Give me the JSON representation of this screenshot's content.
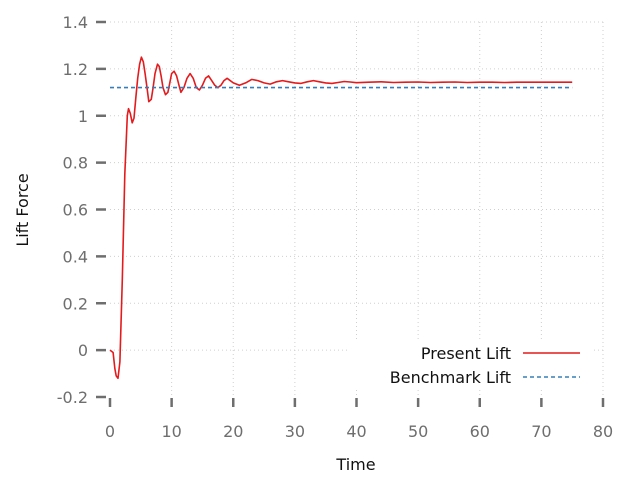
{
  "chart_data": {
    "type": "line",
    "title": "",
    "xlabel": "Time",
    "ylabel": "Lift Force",
    "xlim": [
      0,
      80
    ],
    "ylim": [
      -0.2,
      1.4
    ],
    "xticks": [
      0,
      10,
      20,
      30,
      40,
      50,
      60,
      70,
      80
    ],
    "xtick_labels": [
      "0",
      "10",
      "20",
      "30",
      "40",
      "50",
      "60",
      "70",
      "80"
    ],
    "yticks": [
      -0.2,
      0,
      0.2,
      0.4,
      0.6,
      0.8,
      1,
      1.2,
      1.4
    ],
    "ytick_labels": [
      "-0.2",
      "0",
      "0.2",
      "0.4",
      "0.6",
      "0.8",
      "1",
      "1.2",
      "1.4"
    ],
    "grid": true,
    "legend": "bottom-right",
    "series": [
      {
        "name": "Present Lift",
        "color": "#e41a1c",
        "style": "solid",
        "x": [
          0,
          0.5,
          0.8,
          1.0,
          1.3,
          1.6,
          2.0,
          2.4,
          2.8,
          3.0,
          3.3,
          3.6,
          3.9,
          4.2,
          4.5,
          4.8,
          5.1,
          5.4,
          5.7,
          6.0,
          6.3,
          6.7,
          7.0,
          7.3,
          7.7,
          8.0,
          8.3,
          8.6,
          9.0,
          9.4,
          9.7,
          10.0,
          10.4,
          10.8,
          11.2,
          11.5,
          12.0,
          12.5,
          13.0,
          13.5,
          14.0,
          14.5,
          15.0,
          15.5,
          16.0,
          16.5,
          17.0,
          17.5,
          18.0,
          18.5,
          19.0,
          20.0,
          21.0,
          22.0,
          23.0,
          24.0,
          25.0,
          26.0,
          27.0,
          28.0,
          29.0,
          30.0,
          31.0,
          32.0,
          33.0,
          34.0,
          35.0,
          36.0,
          37.0,
          38.0,
          39.0,
          40.0,
          42.0,
          44.0,
          46.0,
          48.0,
          50.0,
          52.0,
          54.0,
          56.0,
          58.0,
          60.0,
          62.0,
          64.0,
          66.0,
          68.0,
          70.0,
          72.0,
          75.0
        ],
        "values": [
          0,
          -0.01,
          -0.08,
          -0.11,
          -0.12,
          -0.05,
          0.3,
          0.75,
          1.0,
          1.03,
          1.01,
          0.97,
          0.99,
          1.08,
          1.16,
          1.22,
          1.25,
          1.23,
          1.18,
          1.12,
          1.06,
          1.07,
          1.12,
          1.18,
          1.22,
          1.21,
          1.17,
          1.12,
          1.09,
          1.1,
          1.14,
          1.18,
          1.19,
          1.17,
          1.13,
          1.1,
          1.12,
          1.16,
          1.18,
          1.16,
          1.12,
          1.11,
          1.13,
          1.16,
          1.17,
          1.15,
          1.13,
          1.12,
          1.13,
          1.15,
          1.16,
          1.14,
          1.13,
          1.14,
          1.155,
          1.15,
          1.14,
          1.135,
          1.145,
          1.15,
          1.145,
          1.14,
          1.138,
          1.145,
          1.15,
          1.145,
          1.14,
          1.138,
          1.142,
          1.146,
          1.144,
          1.141,
          1.143,
          1.145,
          1.142,
          1.143,
          1.144,
          1.142,
          1.143,
          1.144,
          1.142,
          1.143,
          1.143,
          1.142,
          1.143,
          1.143,
          1.143,
          1.143,
          1.143
        ]
      },
      {
        "name": "Benchmark Lift",
        "color": "#377eb8",
        "style": "dashed",
        "x": [
          0,
          75
        ],
        "values": [
          1.12,
          1.12
        ]
      }
    ]
  }
}
